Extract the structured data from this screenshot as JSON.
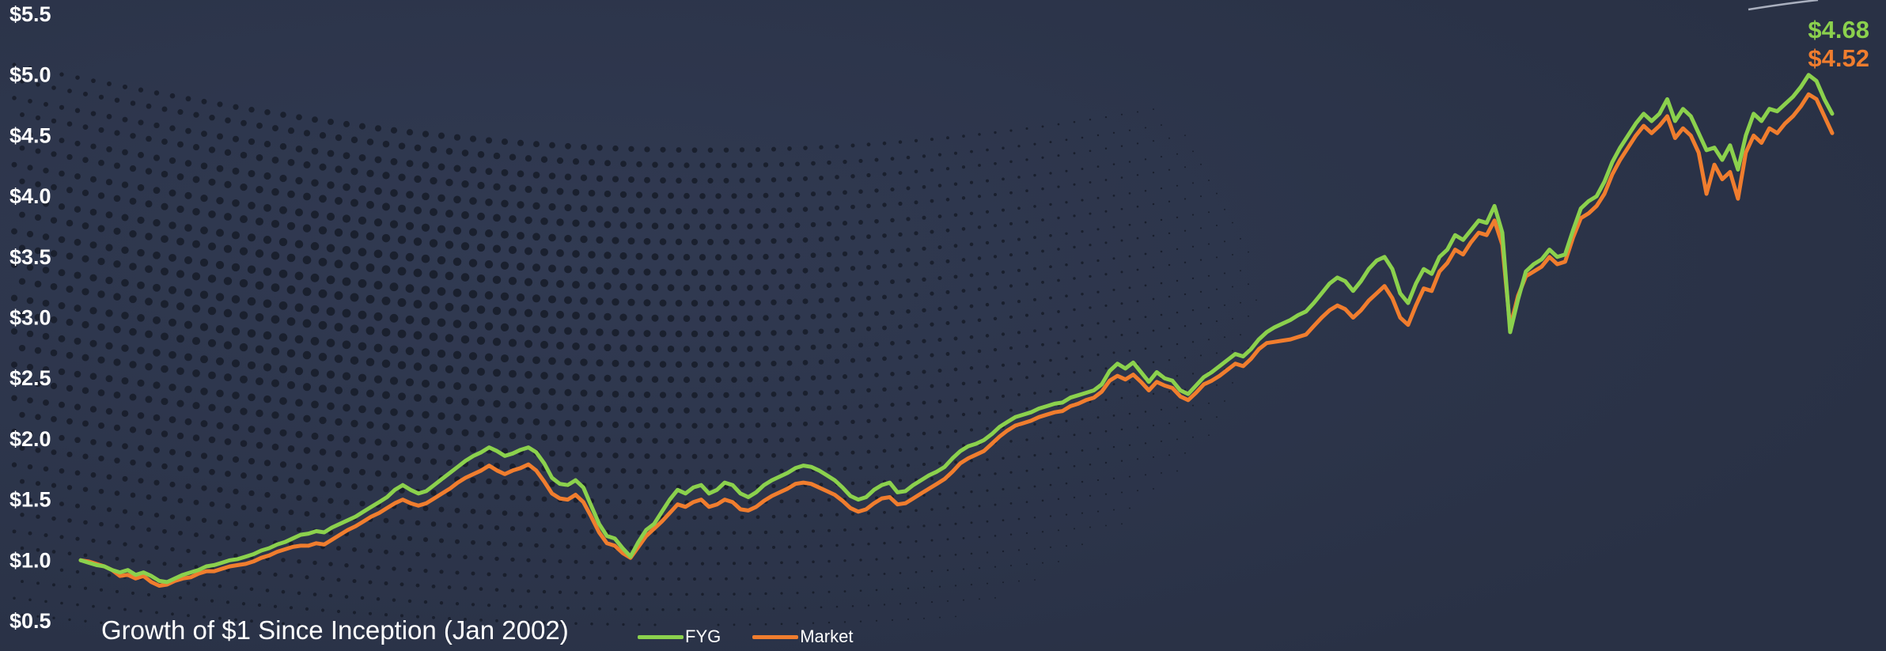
{
  "chart_data": {
    "type": "line",
    "title": "Growth of $1 Since Inception (Jan 2002)",
    "xlabel": "",
    "ylabel": "",
    "x_start": "Jan 2002",
    "ylim": [
      0.5,
      5.5
    ],
    "yticks": [
      0.5,
      1.0,
      1.5,
      2.0,
      2.5,
      3.0,
      3.5,
      4.0,
      4.5,
      5.0,
      5.5
    ],
    "ytick_labels": [
      "$0.5",
      "$1.0",
      "$1.5",
      "$2.0",
      "$2.5",
      "$3.0",
      "$3.5",
      "$4.0",
      "$4.5",
      "$5.0",
      "$5.5"
    ],
    "grid": false,
    "legend_position": "bottom-center",
    "end_labels": [
      "$4.68",
      "$4.52"
    ],
    "series": [
      {
        "name": "FYG",
        "color": "#8bd14d",
        "values": [
          1.0,
          0.98,
          0.96,
          0.95,
          0.92,
          0.9,
          0.92,
          0.88,
          0.9,
          0.87,
          0.83,
          0.82,
          0.85,
          0.88,
          0.9,
          0.92,
          0.95,
          0.96,
          0.98,
          1.0,
          1.01,
          1.03,
          1.05,
          1.08,
          1.1,
          1.13,
          1.15,
          1.18,
          1.21,
          1.22,
          1.24,
          1.23,
          1.27,
          1.3,
          1.33,
          1.36,
          1.4,
          1.44,
          1.48,
          1.52,
          1.58,
          1.62,
          1.58,
          1.55,
          1.57,
          1.62,
          1.67,
          1.72,
          1.77,
          1.82,
          1.86,
          1.89,
          1.93,
          1.9,
          1.86,
          1.88,
          1.91,
          1.93,
          1.89,
          1.8,
          1.68,
          1.63,
          1.62,
          1.66,
          1.6,
          1.45,
          1.3,
          1.2,
          1.18,
          1.1,
          1.03,
          1.15,
          1.25,
          1.3,
          1.4,
          1.5,
          1.58,
          1.55,
          1.6,
          1.62,
          1.55,
          1.58,
          1.64,
          1.62,
          1.55,
          1.52,
          1.56,
          1.62,
          1.66,
          1.69,
          1.72,
          1.76,
          1.78,
          1.77,
          1.74,
          1.7,
          1.66,
          1.6,
          1.53,
          1.5,
          1.52,
          1.58,
          1.62,
          1.64,
          1.56,
          1.57,
          1.62,
          1.66,
          1.7,
          1.73,
          1.77,
          1.84,
          1.9,
          1.94,
          1.96,
          1.99,
          2.04,
          2.1,
          2.14,
          2.18,
          2.2,
          2.22,
          2.25,
          2.27,
          2.29,
          2.3,
          2.34,
          2.36,
          2.38,
          2.4,
          2.45,
          2.56,
          2.62,
          2.58,
          2.63,
          2.55,
          2.47,
          2.55,
          2.5,
          2.48,
          2.4,
          2.37,
          2.44,
          2.51,
          2.55,
          2.6,
          2.65,
          2.7,
          2.68,
          2.74,
          2.82,
          2.88,
          2.92,
          2.95,
          2.98,
          3.02,
          3.05,
          3.12,
          3.2,
          3.28,
          3.33,
          3.3,
          3.22,
          3.3,
          3.4,
          3.47,
          3.5,
          3.4,
          3.2,
          3.12,
          3.28,
          3.4,
          3.36,
          3.5,
          3.56,
          3.68,
          3.64,
          3.72,
          3.8,
          3.78,
          3.92,
          3.7,
          2.88,
          3.15,
          3.38,
          3.44,
          3.48,
          3.56,
          3.5,
          3.52,
          3.72,
          3.9,
          3.96,
          4.0,
          4.12,
          4.28,
          4.4,
          4.5,
          4.6,
          4.68,
          4.62,
          4.68,
          4.8,
          4.62,
          4.72,
          4.66,
          4.52,
          4.38,
          4.4,
          4.3,
          4.42,
          4.22,
          4.5,
          4.68,
          4.62,
          4.72,
          4.7,
          4.76,
          4.82,
          4.9,
          5.0,
          4.95,
          4.8,
          4.68
        ]
      },
      {
        "name": "Market",
        "color": "#f07d2e",
        "values": [
          1.0,
          0.99,
          0.97,
          0.95,
          0.92,
          0.87,
          0.88,
          0.85,
          0.87,
          0.82,
          0.79,
          0.8,
          0.83,
          0.85,
          0.86,
          0.89,
          0.91,
          0.91,
          0.93,
          0.95,
          0.96,
          0.97,
          0.99,
          1.02,
          1.04,
          1.07,
          1.09,
          1.11,
          1.12,
          1.12,
          1.14,
          1.13,
          1.17,
          1.21,
          1.25,
          1.28,
          1.32,
          1.36,
          1.39,
          1.43,
          1.47,
          1.5,
          1.47,
          1.45,
          1.47,
          1.51,
          1.55,
          1.59,
          1.64,
          1.68,
          1.71,
          1.74,
          1.78,
          1.74,
          1.71,
          1.74,
          1.76,
          1.79,
          1.74,
          1.65,
          1.55,
          1.51,
          1.5,
          1.54,
          1.48,
          1.36,
          1.23,
          1.14,
          1.12,
          1.06,
          1.02,
          1.11,
          1.2,
          1.26,
          1.32,
          1.39,
          1.46,
          1.44,
          1.48,
          1.5,
          1.44,
          1.46,
          1.5,
          1.48,
          1.42,
          1.41,
          1.44,
          1.49,
          1.53,
          1.56,
          1.59,
          1.63,
          1.64,
          1.63,
          1.6,
          1.57,
          1.54,
          1.49,
          1.43,
          1.4,
          1.42,
          1.47,
          1.51,
          1.52,
          1.46,
          1.47,
          1.51,
          1.55,
          1.59,
          1.63,
          1.67,
          1.73,
          1.8,
          1.84,
          1.87,
          1.9,
          1.96,
          2.02,
          2.07,
          2.11,
          2.13,
          2.15,
          2.18,
          2.2,
          2.22,
          2.23,
          2.27,
          2.29,
          2.32,
          2.34,
          2.39,
          2.48,
          2.52,
          2.49,
          2.53,
          2.47,
          2.4,
          2.47,
          2.44,
          2.42,
          2.35,
          2.32,
          2.38,
          2.45,
          2.48,
          2.52,
          2.57,
          2.62,
          2.6,
          2.66,
          2.74,
          2.79,
          2.8,
          2.81,
          2.82,
          2.84,
          2.86,
          2.93,
          3.0,
          3.06,
          3.1,
          3.07,
          3.0,
          3.06,
          3.14,
          3.2,
          3.26,
          3.16,
          3.0,
          2.94,
          3.1,
          3.24,
          3.22,
          3.38,
          3.45,
          3.56,
          3.52,
          3.62,
          3.7,
          3.68,
          3.8,
          3.6,
          2.92,
          3.18,
          3.34,
          3.38,
          3.42,
          3.5,
          3.44,
          3.46,
          3.66,
          3.82,
          3.86,
          3.92,
          4.02,
          4.18,
          4.3,
          4.4,
          4.5,
          4.58,
          4.52,
          4.58,
          4.66,
          4.48,
          4.56,
          4.5,
          4.36,
          4.02,
          4.26,
          4.14,
          4.2,
          3.98,
          4.36,
          4.5,
          4.44,
          4.56,
          4.52,
          4.6,
          4.66,
          4.74,
          4.84,
          4.8,
          4.66,
          4.52
        ]
      }
    ]
  }
}
